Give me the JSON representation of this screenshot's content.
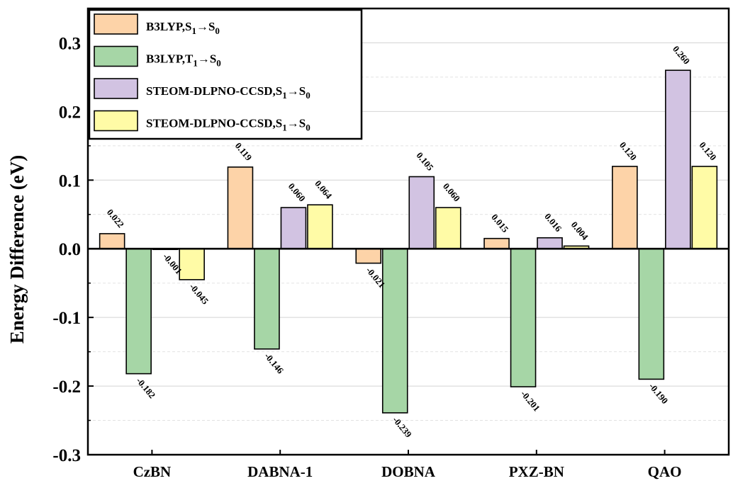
{
  "chart_data": {
    "type": "bar",
    "ylabel": "Energy Difference (eV)",
    "xlabel": "",
    "ylim": [
      -0.3,
      0.35
    ],
    "yticks": [
      "-0.3",
      "-0.2",
      "-0.1",
      "0.0",
      "0.1",
      "0.2",
      "0.3"
    ],
    "ytick_values": [
      -0.3,
      -0.2,
      -0.1,
      0.0,
      0.1,
      0.2,
      0.3
    ],
    "grid": true,
    "legend_position": "top-left",
    "categories": [
      "CzBN",
      "DABNA-1",
      "DOBNA",
      "PXZ-BN",
      "QAO"
    ],
    "series": [
      {
        "name": "B3LYP,S1→S0",
        "name_main": "B3LYP,S",
        "name_sub1": "1",
        "name_arrow": "→S",
        "name_sub2": "0",
        "color": "#FDD3A8",
        "values": [
          0.022,
          0.119,
          -0.021,
          0.015,
          0.12
        ],
        "labels": [
          "0.022",
          "0.119",
          "-0.021",
          "0.015",
          "0.120"
        ]
      },
      {
        "name": "B3LYP,T1→S0",
        "name_main": "B3LYP,T",
        "name_sub1": "1",
        "name_arrow": "→S",
        "name_sub2": "0",
        "color": "#A6D6A6",
        "values": [
          -0.182,
          -0.146,
          -0.239,
          -0.201,
          -0.19
        ],
        "labels": [
          "-0.182",
          "-0.146",
          "-0.239",
          "-0.201",
          "-0.190"
        ]
      },
      {
        "name": "STEOM-DLPNO-CCSD,S1→S0",
        "name_main": "STEOM-DLPNO-CCSD,S",
        "name_sub1": "1",
        "name_arrow": "→S",
        "name_sub2": "0",
        "color": "#D2C3E2",
        "values": [
          -0.001,
          0.06,
          0.105,
          0.016,
          0.26
        ],
        "labels": [
          "-0.001",
          "0.060",
          "0.105",
          "0.016",
          "0.260"
        ]
      },
      {
        "name": "STEOM-DLPNO-CCSD,S1→S0",
        "name_main": "STEOM-DLPNO-CCSD,S",
        "name_sub1": "1",
        "name_arrow": "→S",
        "name_sub2": "0",
        "color": "#FFFBA6",
        "values": [
          -0.045,
          0.064,
          0.06,
          0.004,
          0.12
        ],
        "labels": [
          "-0.045",
          "0.064",
          "0.060",
          "0.004",
          "0.120"
        ]
      }
    ]
  }
}
